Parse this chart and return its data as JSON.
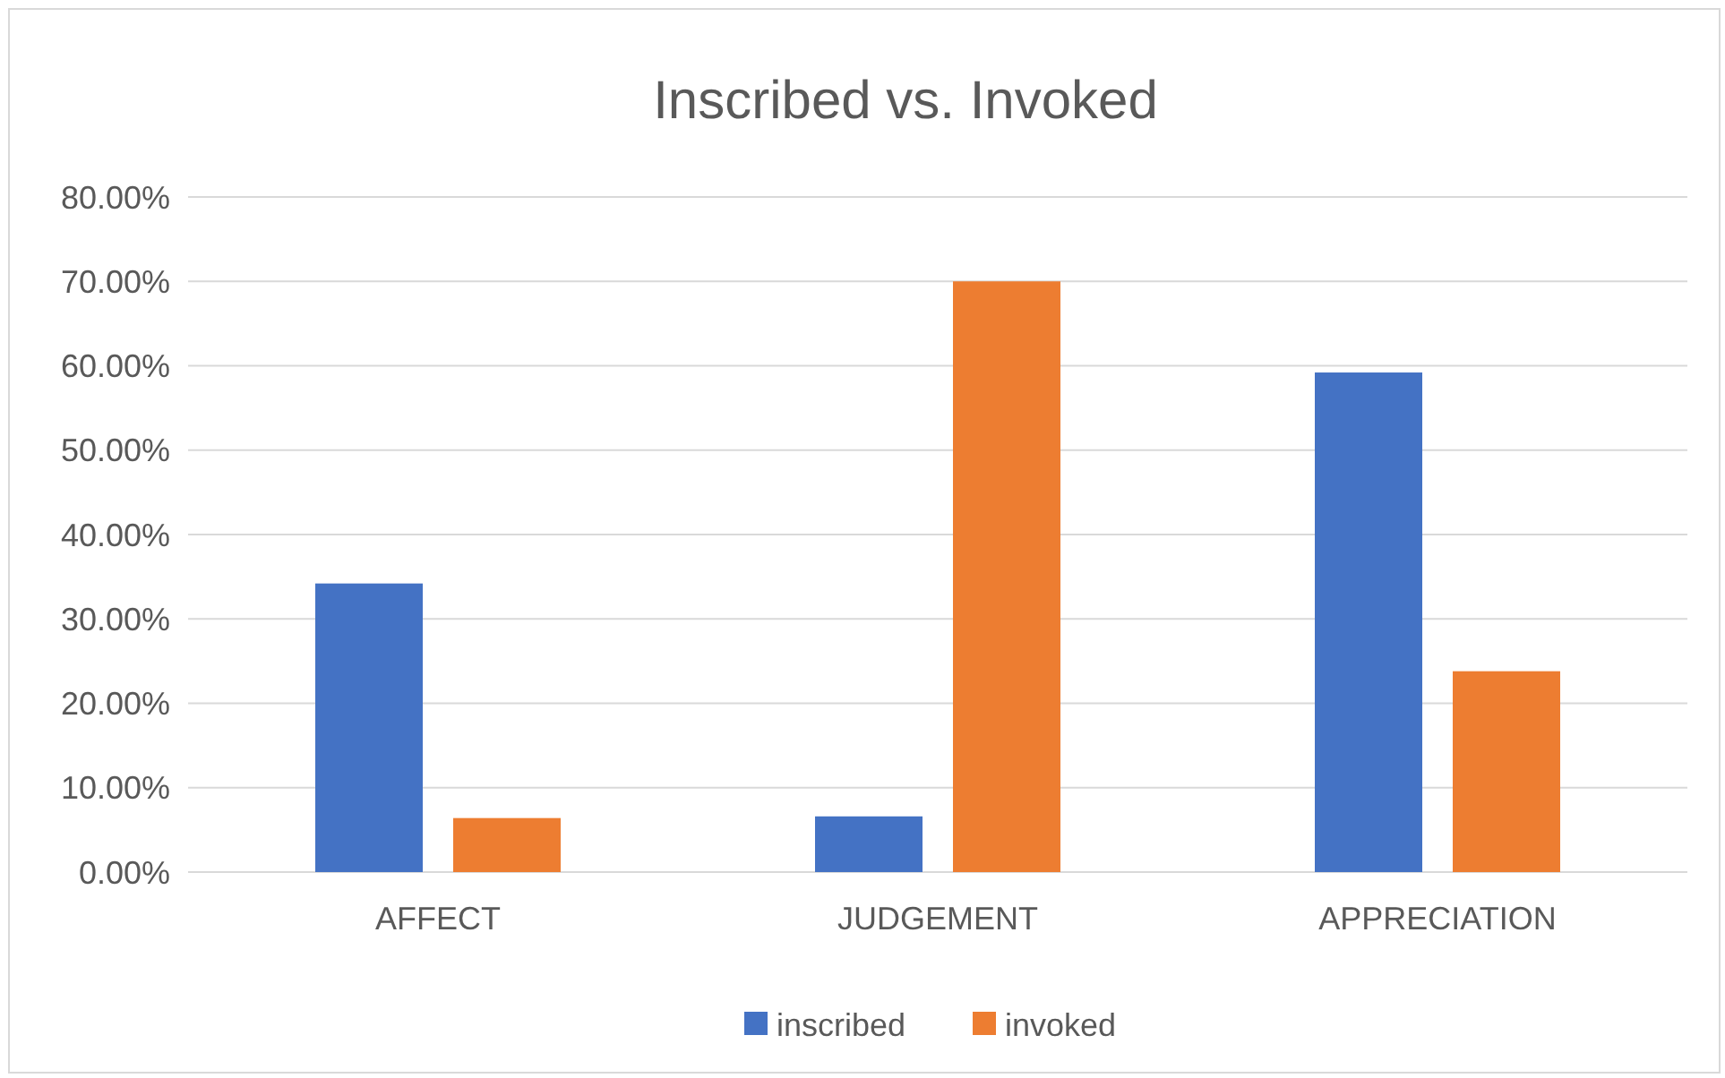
{
  "chart_data": {
    "type": "bar",
    "title": "Inscribed vs. Invoked",
    "categories": [
      "AFFECT",
      "JUDGEMENT",
      "APPRECIATION"
    ],
    "series": [
      {
        "name": "inscribed",
        "color": "#4472c4",
        "values": [
          34.2,
          6.6,
          59.2
        ]
      },
      {
        "name": "invoked",
        "color": "#ed7d31",
        "values": [
          6.4,
          70,
          23.8
        ]
      }
    ],
    "ylim": [
      0,
      80
    ],
    "yticks": [
      {
        "value": 0,
        "label": "0.00%"
      },
      {
        "value": 10,
        "label": "10.00%"
      },
      {
        "value": 20,
        "label": "20.00%"
      },
      {
        "value": 30,
        "label": "30.00%"
      },
      {
        "value": 40,
        "label": "40.00%"
      },
      {
        "value": 50,
        "label": "50.00%"
      },
      {
        "value": 60,
        "label": "60.00%"
      },
      {
        "value": 70,
        "label": "70.00%"
      },
      {
        "value": 80,
        "label": "80.00%"
      }
    ],
    "grid": "y",
    "legend": "bottom"
  }
}
